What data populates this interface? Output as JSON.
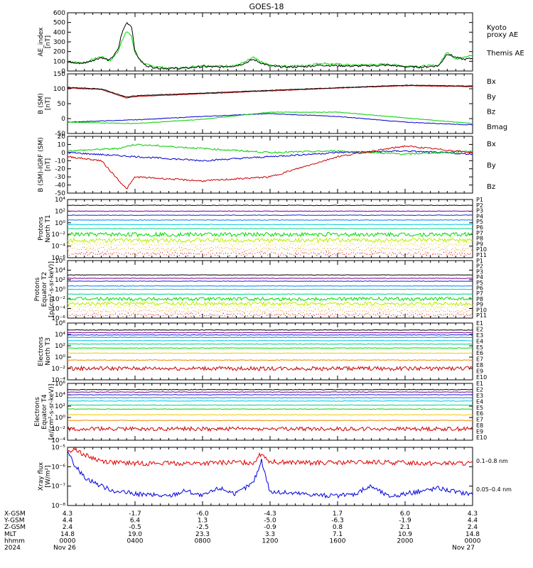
{
  "title": "GOES-18",
  "chart_data": [
    {
      "type": "line",
      "id": "ae",
      "ylabel": [
        "AE_index",
        "[nT]"
      ],
      "yticks": [
        "600",
        "500",
        "400",
        "300",
        "200",
        "100",
        "0"
      ],
      "ylim": [
        0,
        600
      ],
      "series": [
        {
          "name": "Kyoto proxy AE",
          "label_lines": [
            "Kyoto",
            "proxy AE"
          ],
          "color": "#00dd00",
          "x": [
            0,
            0.5,
            1,
            1.5,
            2,
            2.5,
            3,
            3.2,
            3.5,
            3.8,
            4,
            4.3,
            4.6,
            5,
            5.5,
            6,
            7,
            8,
            9,
            10,
            10.5,
            11,
            11.5,
            12,
            13,
            14,
            15,
            16,
            17,
            18,
            19,
            20,
            21,
            22,
            22.5,
            23,
            23.5,
            24
          ],
          "values": [
            100,
            90,
            80,
            120,
            150,
            100,
            200,
            300,
            420,
            350,
            180,
            120,
            70,
            50,
            40,
            30,
            35,
            60,
            50,
            60,
            90,
            140,
            90,
            60,
            50,
            55,
            80,
            70,
            60,
            65,
            70,
            50,
            50,
            60,
            200,
            120,
            150,
            160
          ]
        },
        {
          "name": "Themis AE",
          "label_lines": [
            "Themis AE"
          ],
          "color": "#000000",
          "x": [
            0,
            0.5,
            1,
            1.5,
            2,
            2.5,
            3,
            3.2,
            3.5,
            3.8,
            4,
            4.3,
            4.6,
            5,
            5.5,
            6,
            7,
            8,
            9,
            10,
            10.5,
            11,
            11.5,
            12,
            13,
            14,
            15,
            16,
            17,
            18,
            19,
            20,
            21,
            22,
            22.5,
            23,
            23.5,
            24
          ],
          "values": [
            95,
            80,
            85,
            110,
            140,
            110,
            220,
            380,
            500,
            460,
            200,
            110,
            60,
            40,
            30,
            25,
            30,
            45,
            40,
            55,
            80,
            120,
            80,
            50,
            40,
            45,
            60,
            55,
            50,
            55,
            60,
            45,
            40,
            55,
            180,
            140,
            120,
            130
          ]
        }
      ]
    },
    {
      "type": "line",
      "id": "bsm",
      "ylabel": [
        "B (SM)",
        "[nT]"
      ],
      "yticks": [
        "150",
        "100",
        "50",
        "0",
        "-50"
      ],
      "ylim": [
        -60,
        150
      ],
      "series": [
        {
          "name": "Bx",
          "color": "#0000cc",
          "x": [
            0,
            4,
            8,
            12,
            16,
            20,
            24
          ],
          "values": [
            -20,
            -12,
            0,
            10,
            0,
            -20,
            -30
          ]
        },
        {
          "name": "By",
          "color": "#00cc00",
          "x": [
            0,
            4,
            8,
            12,
            16,
            20,
            24
          ],
          "values": [
            -20,
            -25,
            -10,
            15,
            15,
            -5,
            -25
          ]
        },
        {
          "name": "Bz",
          "color": "#cc0000",
          "x": [
            0,
            2,
            3.5,
            4,
            8,
            12,
            16,
            20,
            24
          ],
          "values": [
            100,
            95,
            65,
            70,
            80,
            90,
            100,
            108,
            105
          ]
        },
        {
          "name": "Bmag",
          "color": "#000000",
          "x": [
            0,
            2,
            3.5,
            4,
            8,
            12,
            16,
            20,
            24
          ],
          "values": [
            102,
            97,
            68,
            73,
            82,
            92,
            101,
            110,
            107
          ]
        }
      ]
    },
    {
      "type": "line",
      "id": "digrf",
      "ylabel": [
        "B (SM)-IGRF (SM)",
        "[nT]"
      ],
      "yticks": [
        "20",
        "10",
        "0",
        "-10",
        "-20",
        "-30",
        "-40",
        "-50"
      ],
      "ylim": [
        -50,
        20
      ],
      "series": [
        {
          "name": "Bx",
          "color": "#0000cc",
          "x": [
            0,
            4,
            8,
            12,
            16,
            20,
            24
          ],
          "values": [
            0,
            -5,
            -10,
            -5,
            0,
            2,
            -2
          ]
        },
        {
          "name": "By",
          "color": "#00cc00",
          "x": [
            0,
            3,
            4,
            8,
            12,
            16,
            20,
            24
          ],
          "values": [
            2,
            5,
            10,
            5,
            0,
            2,
            -2,
            2
          ]
        },
        {
          "name": "Bz",
          "color": "#cc0000",
          "x": [
            0,
            2,
            3.5,
            4,
            8,
            12,
            16,
            20,
            24
          ],
          "values": [
            -5,
            -10,
            -45,
            -30,
            -35,
            -30,
            -5,
            8,
            0
          ]
        }
      ]
    },
    {
      "type": "line",
      "id": "pn",
      "ylabel": [
        "Protons",
        "North T1"
      ],
      "ylog": true,
      "ylim": [
        1e-06,
        10000.0
      ],
      "yticks": [
        "10⁴",
        "10²",
        "10⁰",
        "10⁻²",
        "10⁻⁴",
        "10⁻⁶"
      ],
      "series": [
        {
          "name": "P1",
          "color": "#000000",
          "values": [
            1000
          ]
        },
        {
          "name": "P2",
          "color": "#7a0090",
          "values": [
            100
          ]
        },
        {
          "name": "P3",
          "color": "#2020dd",
          "values": [
            20
          ]
        },
        {
          "name": "P4",
          "color": "#0080ff",
          "values": [
            3
          ]
        },
        {
          "name": "P5",
          "color": "#00c8dd",
          "values": [
            0.5
          ]
        },
        {
          "name": "P6",
          "color": "#00d08a",
          "values": [
            0.1
          ]
        },
        {
          "name": "P7",
          "color": "#00dd00",
          "values": [
            0.01
          ]
        },
        {
          "name": "P8",
          "color": "#bbee00",
          "values": [
            0.001
          ]
        },
        {
          "name": "P9",
          "color": "#eecc00",
          "values": [
            0.0002
          ]
        },
        {
          "name": "P10",
          "color": "#ee8800",
          "values": [
            3e-05
          ]
        },
        {
          "name": "P11",
          "color": "#dd0000",
          "values": [
            5e-06
          ]
        }
      ]
    },
    {
      "type": "line",
      "id": "pe",
      "ylabel": [
        "Protons",
        "Equator T2",
        "[p/(cm²-s-sr-keV)]"
      ],
      "ylog": true,
      "ylim": [
        1e-06,
        1000000.0
      ],
      "yticks": [
        "10⁶",
        "10⁴",
        "10²",
        "10⁰",
        "10⁻²",
        "10⁻⁴",
        "10⁻⁶"
      ],
      "series": [
        {
          "name": "P1",
          "color": "#000000",
          "values": [
            1000
          ]
        },
        {
          "name": "P2",
          "color": "#7a0090",
          "values": [
            200
          ]
        },
        {
          "name": "P3",
          "color": "#2020dd",
          "values": [
            50
          ]
        },
        {
          "name": "P4",
          "color": "#0080ff",
          "values": [
            5
          ]
        },
        {
          "name": "P5",
          "color": "#00c8dd",
          "values": [
            1
          ]
        },
        {
          "name": "P6",
          "color": "#00d08a",
          "values": [
            0.1
          ]
        },
        {
          "name": "P7",
          "color": "#00dd00",
          "values": [
            0.01
          ]
        },
        {
          "name": "P8",
          "color": "#bbee00",
          "values": [
            0.001
          ]
        },
        {
          "name": "P9",
          "color": "#eecc00",
          "values": [
            0.0002
          ]
        },
        {
          "name": "P10",
          "color": "#ee8800",
          "values": [
            3e-05
          ]
        },
        {
          "name": "P11",
          "color": "#dd0000",
          "values": [
            5e-06
          ]
        }
      ]
    },
    {
      "type": "line",
      "id": "en",
      "ylabel": [
        "Electrons",
        "North T3"
      ],
      "ylog": true,
      "ylim": [
        0.0001,
        1000000.0
      ],
      "yticks": [
        "10⁶",
        "10⁴",
        "10²",
        "10⁰",
        "10⁻²",
        "10⁻⁴"
      ],
      "series": [
        {
          "name": "E1",
          "color": "#000000",
          "values": [
            60000
          ]
        },
        {
          "name": "E2",
          "color": "#7a0090",
          "values": [
            20000
          ]
        },
        {
          "name": "E3",
          "color": "#2020dd",
          "values": [
            8000
          ]
        },
        {
          "name": "E4",
          "color": "#0080ff",
          "values": [
            3000
          ]
        },
        {
          "name": "E5",
          "color": "#00c8dd",
          "values": [
            800
          ]
        },
        {
          "name": "E6",
          "color": "#00d08a",
          "values": [
            200
          ]
        },
        {
          "name": "E7",
          "color": "#00dd00",
          "values": [
            40
          ]
        },
        {
          "name": "E8",
          "color": "#eecc00",
          "values": [
            5
          ]
        },
        {
          "name": "E9",
          "color": "#ee8800",
          "values": [
            0.3
          ]
        },
        {
          "name": "E10",
          "color": "#cc0000",
          "values": [
            0.01
          ]
        }
      ]
    },
    {
      "type": "line",
      "id": "ee",
      "ylabel": [
        "Electrons",
        "Equator T4",
        "[e/(cm²-s-sr-keV)]"
      ],
      "ylog": true,
      "ylim": [
        0.0001,
        1000000.0
      ],
      "yticks": [
        "10⁶",
        "10⁴",
        "10²",
        "10⁰",
        "10⁻²",
        "10⁻⁴"
      ],
      "series": [
        {
          "name": "E1",
          "color": "#000000",
          "values": [
            80000
          ]
        },
        {
          "name": "E2",
          "color": "#7a0090",
          "values": [
            30000
          ]
        },
        {
          "name": "E3",
          "color": "#2020dd",
          "values": [
            10000
          ]
        },
        {
          "name": "E4",
          "color": "#0080ff",
          "values": [
            3000
          ]
        },
        {
          "name": "E5",
          "color": "#00c8dd",
          "values": [
            800
          ]
        },
        {
          "name": "E6",
          "color": "#00d08a",
          "values": [
            150
          ]
        },
        {
          "name": "E7",
          "color": "#00dd00",
          "values": [
            30
          ]
        },
        {
          "name": "E8",
          "color": "#eecc00",
          "values": [
            3
          ]
        },
        {
          "name": "E9",
          "color": "#ee8800",
          "values": [
            0.3
          ]
        },
        {
          "name": "E10",
          "color": "#cc0000",
          "values": [
            0.01
          ]
        }
      ]
    },
    {
      "type": "line",
      "id": "xray",
      "ylabel": [
        "Xray flux",
        "[W/m²]"
      ],
      "ylog": true,
      "ylim": [
        1e-08,
        1e-05
      ],
      "yticks": [
        "10⁻⁵",
        "10⁻⁶",
        "10⁻⁷",
        "10⁻⁸"
      ],
      "series": [
        {
          "name": "0.1–0.8 nm",
          "color": "#dd0000",
          "x": [
            0,
            0.5,
            1,
            2,
            3,
            4,
            6,
            8,
            10,
            11,
            11.5,
            12,
            14,
            16,
            18,
            20,
            22,
            24
          ],
          "values": [
            6e-06,
            8e-06,
            4e-06,
            2e-06,
            1.6e-06,
            1.5e-06,
            1.5e-06,
            1.5e-06,
            1.7e-06,
            1.6e-06,
            5e-06,
            1.8e-06,
            1.6e-06,
            1.6e-06,
            1.7e-06,
            1.6e-06,
            1.5e-06,
            1.5e-06
          ]
        },
        {
          "name": "0.05–0.4 nm",
          "color": "#0000dd",
          "x": [
            0,
            0.5,
            1,
            2,
            3,
            4,
            6,
            7,
            8,
            9,
            10,
            11,
            11.5,
            12,
            14,
            16,
            17,
            18,
            19,
            20,
            22,
            23,
            24
          ],
          "values": [
            5e-06,
            1e-06,
            3e-07,
            1e-07,
            5e-08,
            4e-08,
            3e-08,
            6e-08,
            3e-08,
            8e-08,
            4e-08,
            1.5e-07,
            2e-06,
            5e-08,
            4e-08,
            3e-08,
            4e-08,
            1e-07,
            3e-08,
            4e-08,
            8e-08,
            5e-08,
            4e-08
          ]
        }
      ]
    }
  ],
  "xaxis": {
    "row_labels": [
      "X-GSM",
      "Y-GSM",
      "Z-GSM",
      "MLT",
      "hhmm",
      "2024"
    ],
    "hours": [
      0,
      4,
      8,
      12,
      16,
      20,
      24
    ],
    "columns": [
      [
        "4.3",
        "4.4",
        "2.4",
        "14.8",
        "0000",
        "Nov 26"
      ],
      [
        "-1.7",
        "6.4",
        "-0.5",
        "19.0",
        "0400",
        ""
      ],
      [
        "-6.0",
        "1.3",
        "-2.5",
        "23.3",
        "0800",
        ""
      ],
      [
        "-4.3",
        "-5.0",
        "-0.9",
        "3.3",
        "1200",
        ""
      ],
      [
        "1.7",
        "-6.3",
        "0.8",
        "7.1",
        "1600",
        ""
      ],
      [
        "6.0",
        "-1.9",
        "2.1",
        "10.9",
        "2000",
        ""
      ],
      [
        "4.3",
        "4.4",
        "2.4",
        "14.8",
        "0000",
        "Nov 27"
      ]
    ]
  }
}
